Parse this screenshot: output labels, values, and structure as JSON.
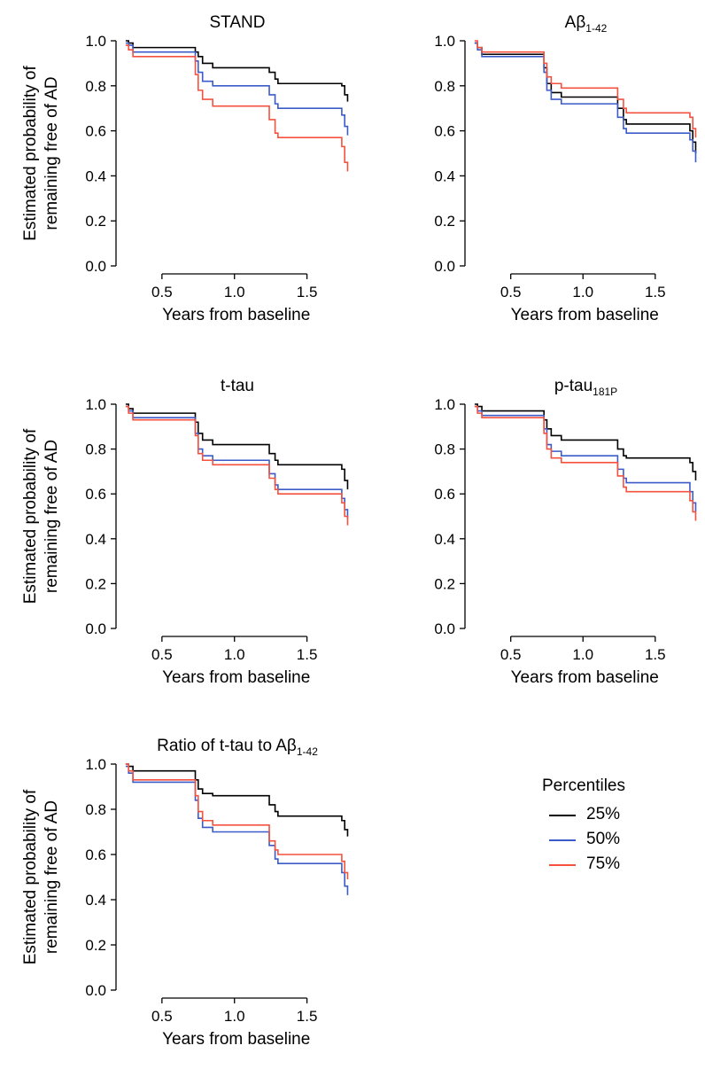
{
  "chart_data": [
    {
      "type": "line",
      "title": "STAND",
      "xlabel": "Years from baseline",
      "ylabel": "Estimated probability of remaining free of AD",
      "xlim": [
        0.22,
        1.82
      ],
      "ylim": [
        0,
        1.0
      ],
      "xticks": [
        "0.5",
        "1.0",
        "1.5"
      ],
      "yticks": [
        "0.0",
        "0.2",
        "0.4",
        "0.6",
        "0.8",
        "1.0"
      ],
      "series": [
        {
          "name": "25%",
          "color": "#000000",
          "x": [
            0.25,
            0.27,
            0.3,
            0.7,
            0.73,
            0.75,
            0.78,
            0.85,
            1.2,
            1.24,
            1.28,
            1.3,
            1.74,
            1.76,
            1.78
          ],
          "y": [
            1.0,
            0.99,
            0.97,
            0.97,
            0.95,
            0.93,
            0.9,
            0.88,
            0.88,
            0.86,
            0.83,
            0.81,
            0.8,
            0.76,
            0.73
          ]
        },
        {
          "name": "50%",
          "color": "#3b5bc9",
          "x": [
            0.25,
            0.27,
            0.3,
            0.7,
            0.73,
            0.75,
            0.78,
            0.85,
            1.2,
            1.24,
            1.28,
            1.3,
            1.74,
            1.76,
            1.78
          ],
          "y": [
            0.99,
            0.98,
            0.95,
            0.95,
            0.91,
            0.86,
            0.82,
            0.8,
            0.8,
            0.76,
            0.72,
            0.7,
            0.67,
            0.62,
            0.58
          ]
        },
        {
          "name": "75%",
          "color": "#f4523f",
          "x": [
            0.25,
            0.27,
            0.3,
            0.7,
            0.73,
            0.75,
            0.78,
            0.85,
            1.2,
            1.24,
            1.28,
            1.3,
            1.74,
            1.76,
            1.78
          ],
          "y": [
            0.98,
            0.96,
            0.93,
            0.93,
            0.85,
            0.78,
            0.74,
            0.71,
            0.71,
            0.65,
            0.59,
            0.57,
            0.53,
            0.46,
            0.42
          ]
        }
      ]
    },
    {
      "type": "line",
      "title": "Aβ1-42",
      "xlabel": "Years from baseline",
      "ylabel": "",
      "xlim": [
        0.22,
        1.82
      ],
      "ylim": [
        0,
        1.0
      ],
      "xticks": [
        "0.5",
        "1.0",
        "1.5"
      ],
      "yticks": [
        "0.0",
        "0.2",
        "0.4",
        "0.6",
        "0.8",
        "1.0"
      ],
      "series": [
        {
          "name": "25%",
          "color": "#000000",
          "x": [
            0.25,
            0.27,
            0.3,
            0.7,
            0.73,
            0.75,
            0.78,
            0.85,
            1.2,
            1.24,
            1.28,
            1.3,
            1.74,
            1.76,
            1.78
          ],
          "y": [
            0.99,
            0.97,
            0.94,
            0.94,
            0.88,
            0.81,
            0.77,
            0.75,
            0.75,
            0.7,
            0.65,
            0.63,
            0.6,
            0.55,
            0.5
          ]
        },
        {
          "name": "50%",
          "color": "#3b5bc9",
          "x": [
            0.25,
            0.27,
            0.3,
            0.7,
            0.73,
            0.75,
            0.78,
            0.85,
            1.2,
            1.24,
            1.28,
            1.3,
            1.74,
            1.76,
            1.78
          ],
          "y": [
            0.99,
            0.96,
            0.93,
            0.93,
            0.86,
            0.78,
            0.74,
            0.72,
            0.72,
            0.66,
            0.61,
            0.59,
            0.56,
            0.51,
            0.46
          ]
        },
        {
          "name": "75%",
          "color": "#f4523f",
          "x": [
            0.25,
            0.27,
            0.3,
            0.7,
            0.73,
            0.75,
            0.78,
            0.85,
            1.2,
            1.24,
            1.28,
            1.3,
            1.74,
            1.76,
            1.78
          ],
          "y": [
            1.0,
            0.97,
            0.95,
            0.95,
            0.9,
            0.84,
            0.81,
            0.79,
            0.79,
            0.74,
            0.7,
            0.68,
            0.66,
            0.61,
            0.57
          ]
        }
      ]
    },
    {
      "type": "line",
      "title": "t-tau",
      "xlabel": "Years from baseline",
      "ylabel": "Estimated probability of remaining free of AD",
      "xlim": [
        0.22,
        1.82
      ],
      "ylim": [
        0,
        1.0
      ],
      "xticks": [
        "0.5",
        "1.0",
        "1.5"
      ],
      "yticks": [
        "0.0",
        "0.2",
        "0.4",
        "0.6",
        "0.8",
        "1.0"
      ],
      "series": [
        {
          "name": "25%",
          "color": "#000000",
          "x": [
            0.25,
            0.27,
            0.3,
            0.7,
            0.73,
            0.75,
            0.78,
            0.85,
            1.2,
            1.24,
            1.28,
            1.3,
            1.74,
            1.76,
            1.78
          ],
          "y": [
            1.0,
            0.98,
            0.96,
            0.96,
            0.92,
            0.87,
            0.84,
            0.82,
            0.82,
            0.78,
            0.75,
            0.73,
            0.71,
            0.66,
            0.62
          ]
        },
        {
          "name": "50%",
          "color": "#3b5bc9",
          "x": [
            0.25,
            0.27,
            0.3,
            0.7,
            0.73,
            0.75,
            0.78,
            0.85,
            1.2,
            1.24,
            1.28,
            1.3,
            1.74,
            1.76,
            1.78
          ],
          "y": [
            0.99,
            0.97,
            0.94,
            0.94,
            0.87,
            0.8,
            0.77,
            0.75,
            0.75,
            0.69,
            0.64,
            0.62,
            0.58,
            0.53,
            0.49
          ]
        },
        {
          "name": "75%",
          "color": "#f4523f",
          "x": [
            0.25,
            0.27,
            0.3,
            0.7,
            0.73,
            0.75,
            0.78,
            0.85,
            1.2,
            1.24,
            1.28,
            1.3,
            1.74,
            1.76,
            1.78
          ],
          "y": [
            0.99,
            0.96,
            0.93,
            0.93,
            0.86,
            0.78,
            0.75,
            0.73,
            0.73,
            0.67,
            0.62,
            0.6,
            0.56,
            0.5,
            0.46
          ]
        }
      ]
    },
    {
      "type": "line",
      "title": "p-tau181P",
      "xlabel": "Years from baseline",
      "ylabel": "",
      "xlim": [
        0.22,
        1.82
      ],
      "ylim": [
        0,
        1.0
      ],
      "xticks": [
        "0.5",
        "1.0",
        "1.5"
      ],
      "yticks": [
        "0.0",
        "0.2",
        "0.4",
        "0.6",
        "0.8",
        "1.0"
      ],
      "series": [
        {
          "name": "25%",
          "color": "#000000",
          "x": [
            0.25,
            0.27,
            0.3,
            0.7,
            0.73,
            0.75,
            0.78,
            0.85,
            1.2,
            1.24,
            1.28,
            1.3,
            1.74,
            1.76,
            1.78
          ],
          "y": [
            1.0,
            0.99,
            0.97,
            0.97,
            0.93,
            0.89,
            0.86,
            0.84,
            0.84,
            0.8,
            0.77,
            0.76,
            0.74,
            0.7,
            0.66
          ]
        },
        {
          "name": "50%",
          "color": "#3b5bc9",
          "x": [
            0.25,
            0.27,
            0.3,
            0.7,
            0.73,
            0.75,
            0.78,
            0.85,
            1.2,
            1.24,
            1.28,
            1.3,
            1.74,
            1.76,
            1.78
          ],
          "y": [
            0.99,
            0.97,
            0.95,
            0.95,
            0.89,
            0.82,
            0.79,
            0.77,
            0.77,
            0.71,
            0.67,
            0.65,
            0.61,
            0.56,
            0.52
          ]
        },
        {
          "name": "75%",
          "color": "#f4523f",
          "x": [
            0.25,
            0.27,
            0.3,
            0.7,
            0.73,
            0.75,
            0.78,
            0.85,
            1.2,
            1.24,
            1.28,
            1.3,
            1.74,
            1.76,
            1.78
          ],
          "y": [
            0.99,
            0.96,
            0.94,
            0.94,
            0.87,
            0.8,
            0.76,
            0.74,
            0.74,
            0.68,
            0.63,
            0.61,
            0.57,
            0.52,
            0.48
          ]
        }
      ]
    },
    {
      "type": "line",
      "title": "Ratio of t-tau to Aβ1-42",
      "xlabel": "Years from baseline",
      "ylabel": "Estimated probability of remaining free of AD",
      "xlim": [
        0.22,
        1.82
      ],
      "ylim": [
        0,
        1.0
      ],
      "xticks": [
        "0.5",
        "1.0",
        "1.5"
      ],
      "yticks": [
        "0.0",
        "0.2",
        "0.4",
        "0.6",
        "0.8",
        "1.0"
      ],
      "series": [
        {
          "name": "25%",
          "color": "#000000",
          "x": [
            0.25,
            0.27,
            0.3,
            0.7,
            0.73,
            0.75,
            0.78,
            0.85,
            1.2,
            1.24,
            1.28,
            1.3,
            1.74,
            1.76,
            1.78
          ],
          "y": [
            1.0,
            0.99,
            0.97,
            0.97,
            0.93,
            0.89,
            0.87,
            0.86,
            0.86,
            0.82,
            0.79,
            0.77,
            0.75,
            0.71,
            0.68
          ]
        },
        {
          "name": "50%",
          "color": "#3b5bc9",
          "x": [
            0.25,
            0.27,
            0.3,
            0.7,
            0.73,
            0.75,
            0.78,
            0.85,
            1.2,
            1.24,
            1.28,
            1.3,
            1.74,
            1.76,
            1.78
          ],
          "y": [
            0.99,
            0.96,
            0.92,
            0.92,
            0.84,
            0.76,
            0.72,
            0.7,
            0.7,
            0.64,
            0.58,
            0.56,
            0.52,
            0.46,
            0.42
          ]
        },
        {
          "name": "75%",
          "color": "#f4523f",
          "x": [
            0.25,
            0.27,
            0.3,
            0.7,
            0.73,
            0.75,
            0.78,
            0.85,
            1.2,
            1.24,
            1.28,
            1.3,
            1.74,
            1.76,
            1.78
          ],
          "y": [
            1.0,
            0.97,
            0.93,
            0.93,
            0.86,
            0.79,
            0.75,
            0.73,
            0.73,
            0.66,
            0.62,
            0.6,
            0.57,
            0.52,
            0.49
          ]
        }
      ]
    }
  ],
  "legend": {
    "title": "Percentiles",
    "items": [
      {
        "label": "25%",
        "color": "#000000"
      },
      {
        "label": "50%",
        "color": "#3b5bc9"
      },
      {
        "label": "75%",
        "color": "#f4523f"
      }
    ]
  }
}
